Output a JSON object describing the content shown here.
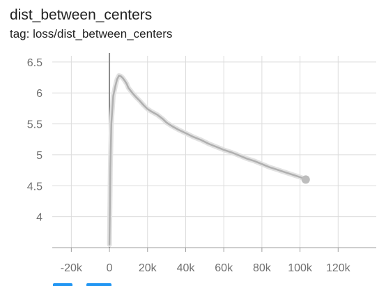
{
  "card": {
    "title": "dist_between_centers",
    "tag": "tag: loss/dist_between_centers"
  },
  "colors": {
    "series": "#bdbdbd",
    "smoothed": "#b0b0b0",
    "grid": "#dcdcdc",
    "axis": "#9e9e9e",
    "tick_text": "#707070",
    "accent": "#2196f3"
  },
  "chart_data": {
    "type": "line",
    "title": "dist_between_centers",
    "xlabel": "",
    "ylabel": "",
    "xlim": [
      -30000,
      140000
    ],
    "ylim": [
      3.5,
      6.6
    ],
    "x_ticks": [
      -20000,
      0,
      20000,
      40000,
      60000,
      80000,
      100000,
      120000
    ],
    "x_tick_labels": [
      "-20k",
      "0",
      "20k",
      "40k",
      "60k",
      "80k",
      "100k",
      "120k"
    ],
    "y_ticks": [
      4,
      4.5,
      5,
      5.5,
      6,
      6.5
    ],
    "y_tick_labels": [
      "4",
      "4.5",
      "5",
      "5.5",
      "6",
      "6.5"
    ],
    "grid": true,
    "legend": "none",
    "series": [
      {
        "x": [
          0,
          500,
          1000,
          2000,
          3000,
          4000,
          5000,
          6000,
          7000,
          8000,
          9000,
          10000,
          12000,
          14000,
          16000,
          18000,
          20000,
          22000,
          25000,
          28000,
          30000,
          33000,
          36000,
          40000,
          44000,
          48000,
          52000,
          56000,
          60000,
          64000,
          68000,
          72000,
          76000,
          80000,
          84000,
          88000,
          92000,
          96000,
          100000,
          103000
        ],
        "y": [
          3.55,
          4.8,
          5.5,
          5.95,
          6.1,
          6.22,
          6.28,
          6.27,
          6.24,
          6.2,
          6.15,
          6.08,
          6.0,
          5.93,
          5.87,
          5.8,
          5.74,
          5.7,
          5.65,
          5.58,
          5.52,
          5.46,
          5.41,
          5.35,
          5.29,
          5.24,
          5.18,
          5.13,
          5.08,
          5.04,
          4.99,
          4.94,
          4.9,
          4.85,
          4.8,
          4.76,
          4.72,
          4.68,
          4.64,
          4.6
        ]
      }
    ]
  },
  "toolbar": {
    "expand_label": "",
    "data_label": ""
  }
}
